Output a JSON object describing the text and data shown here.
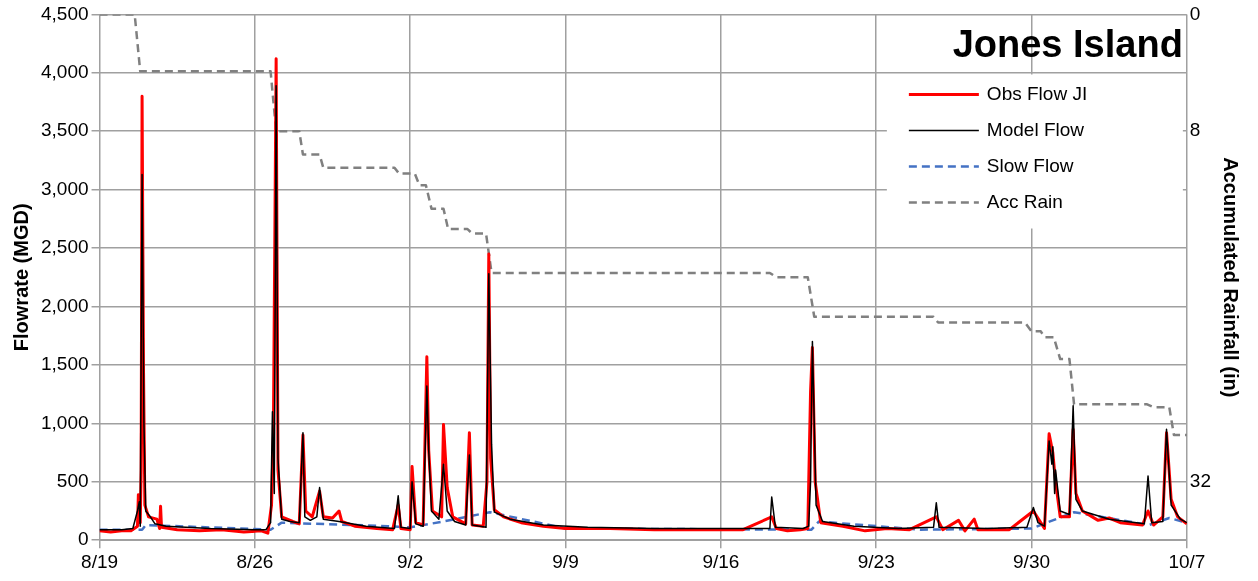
{
  "chart_data": {
    "type": "line",
    "title": "Jones Island",
    "ylabel": "Flowrate (MGD)",
    "y2label": "Accumulated Rainfall (in)",
    "xlim": [
      "--08-19",
      "--10-07"
    ],
    "xticks": [
      {
        "value": "--08-19",
        "label": "8/19"
      },
      {
        "value": "--08-26",
        "label": "8/26"
      },
      {
        "value": "--09-02",
        "label": "9/2"
      },
      {
        "value": "--09-09",
        "label": "9/9"
      },
      {
        "value": "--09-16",
        "label": "9/16"
      },
      {
        "value": "--09-23",
        "label": "9/23"
      },
      {
        "value": "--09-30",
        "label": "9/30"
      },
      {
        "value": "--10-07",
        "label": "10/7"
      }
    ],
    "ylim": [
      0,
      4500
    ],
    "yticks": [
      {
        "value": 0,
        "label": "0"
      },
      {
        "value": 500,
        "label": "500"
      },
      {
        "value": 1000,
        "label": "1,000"
      },
      {
        "value": 1500,
        "label": "1,500"
      },
      {
        "value": 2000,
        "label": "2,000"
      },
      {
        "value": 2500,
        "label": "2,500"
      },
      {
        "value": 3000,
        "label": "3,000"
      },
      {
        "value": 3500,
        "label": "3,500"
      },
      {
        "value": 4000,
        "label": "4,000"
      },
      {
        "value": 4500,
        "label": "4,500"
      }
    ],
    "y2lim": [
      36,
      0
    ],
    "y2ticks": [
      0,
      8,
      32
    ],
    "grid": true,
    "legend": "top right",
    "marker": "none",
    "series": [
      {
        "name": "Obs Flow JI",
        "color": "#ff0000",
        "line_style": "solid",
        "x": [
          "--08-19T00:00",
          "--08-19T12:00",
          "--08-20T00:00",
          "--08-20T10:00",
          "--08-20T17:00",
          "--08-20T18:00",
          "--08-20T20:00",
          "--08-20T21:00",
          "--08-20T22:00",
          "--08-20T23:30",
          "--08-21T01:00",
          "--08-21T05:00",
          "--08-21T14:00",
          "--08-21T17:00",
          "--08-21T18:00",
          "--08-21T19:00",
          "--08-22T12:00",
          "--08-23T12:00",
          "--08-24T12:00",
          "--08-25T12:00",
          "--08-26T07:00",
          "--08-26T14:00",
          "--08-26T18:00",
          "--08-26T20:00",
          "--08-26T23:00",
          "--08-27T01:00",
          "--08-27T05:00",
          "--08-27T17:00",
          "--08-28T00:00",
          "--08-28T04:00",
          "--08-28T07:00",
          "--08-28T14:00",
          "--08-28T22:00",
          "--08-29T02:00",
          "--08-29T12:00",
          "--08-29T19:00",
          "--08-29T22:00",
          "--08-30T12:00",
          "--08-31T12:00",
          "--09-01T05:00",
          "--09-01T11:00",
          "--09-01T14:00",
          "--09-02T00:00",
          "--09-02T02:00",
          "--09-02T06:00",
          "--09-02T14:00",
          "--09-02T18:00",
          "--09-02T20:00",
          "--09-03T00:00",
          "--09-03T10:00",
          "--09-03T12:00",
          "--09-03T16:00",
          "--09-03T22:00",
          "--09-04T12:00",
          "--09-04T16:00",
          "--09-04T19:00",
          "--09-05T07:00",
          "--09-05T11:00",
          "--09-05T13:00",
          "--09-05T15:00",
          "--09-05T19:00",
          "--09-06T05:00",
          "--09-07T00:00",
          "--09-08T00:00",
          "--09-09T00:00",
          "--09-11T00:00",
          "--09-13T00:00",
          "--09-15T00:00",
          "--09-17T00:00",
          "--09-18T07:00",
          "--09-18T12:00",
          "--09-19T00:00",
          "--09-19T14:00",
          "--09-19T22:00",
          "--09-20T01:00",
          "--09-20T03:00",
          "--09-20T06:00",
          "--09-20T12:00",
          "--09-21T12:00",
          "--09-22T12:00",
          "--09-23T12:00",
          "--09-24T12:00",
          "--09-25T17:00",
          "--09-26T00:00",
          "--09-26T17:00",
          "--09-27T00:00",
          "--09-27T10:00",
          "--09-27T14:00",
          "--09-29T00:00",
          "--09-30T02:00",
          "--09-30T10:00",
          "--09-30T14:00",
          "--09-30T19:00",
          "--09-30T23:00",
          "--10-01T02:00",
          "--10-01T07:00",
          "--10-01T17:00",
          "--10-01T21:00",
          "--10-02T00:00",
          "--10-02T07:00",
          "--10-03T00:00",
          "--10-03T12:00",
          "--10-04T00:00",
          "--10-05T00:00",
          "--10-05T06:00",
          "--10-05T12:00",
          "--10-05T22:00",
          "--10-06T02:00",
          "--10-06T07:00",
          "--10-06T14:00",
          "--10-07T00:00"
        ],
        "values": [
          80,
          70,
          80,
          80,
          120,
          390,
          150,
          600,
          3800,
          1500,
          300,
          200,
          180,
          100,
          290,
          110,
          90,
          80,
          90,
          70,
          80,
          60,
          300,
          900,
          4120,
          600,
          200,
          160,
          140,
          900,
          250,
          200,
          420,
          200,
          190,
          250,
          160,
          120,
          100,
          90,
          300,
          100,
          90,
          630,
          150,
          130,
          1570,
          770,
          250,
          200,
          990,
          450,
          200,
          140,
          920,
          130,
          120,
          500,
          2450,
          700,
          260,
          200,
          150,
          120,
          100,
          100,
          90,
          90,
          90,
          200,
          100,
          80,
          90,
          100,
          1270,
          1650,
          500,
          150,
          120,
          80,
          100,
          90,
          200,
          90,
          170,
          80,
          180,
          90,
          90,
          250,
          150,
          100,
          910,
          750,
          500,
          200,
          200,
          950,
          400,
          250,
          170,
          190,
          150,
          130,
          250,
          130,
          200,
          920,
          350,
          200,
          140
        ]
      },
      {
        "name": "Model Flow",
        "color": "#000000",
        "line_style": "solid",
        "x": [
          "--08-19T00:00",
          "--08-20T00:00",
          "--08-20T12:00",
          "--08-20T17:00",
          "--08-20T19:00",
          "--08-20T20:00",
          "--08-20T22:00",
          "--08-21T00:00",
          "--08-21T02:00",
          "--08-21T07:00",
          "--08-21T12:00",
          "--08-22T00:00",
          "--08-24T00:00",
          "--08-26T00:00",
          "--08-26T12:00",
          "--08-26T17:00",
          "--08-26T19:00",
          "--08-26T21:00",
          "--08-26T23:00",
          "--08-27T01:00",
          "--08-27T05:00",
          "--08-27T14:00",
          "--08-28T00:00",
          "--08-28T04:00",
          "--08-28T06:00",
          "--08-28T12:00",
          "--08-28T19:00",
          "--08-28T22:00",
          "--08-29T02:00",
          "--08-29T19:00",
          "--08-31T00:00",
          "--09-01T07:00",
          "--09-01T11:00",
          "--09-01T14:00",
          "--09-02T00:00",
          "--09-02T02:00",
          "--09-02T06:00",
          "--09-02T14:00",
          "--09-02T18:00",
          "--09-02T20:00",
          "--09-02T23:00",
          "--09-03T07:00",
          "--09-03T12:00",
          "--09-03T16:00",
          "--09-04T00:00",
          "--09-04T12:00",
          "--09-04T16:00",
          "--09-04T19:00",
          "--09-05T10:00",
          "--09-05T13:00",
          "--09-05T16:00",
          "--09-05T19:00",
          "--09-06T12:00",
          "--09-08T00:00",
          "--09-10T00:00",
          "--09-13T00:00",
          "--09-16T00:00",
          "--09-18T05:00",
          "--09-18T07:00",
          "--09-18T11:00",
          "--09-19T17:00",
          "--09-19T23:00",
          "--09-20T01:00",
          "--09-20T03:00",
          "--09-20T07:00",
          "--09-20T14:00",
          "--09-22T00:00",
          "--09-24T00:00",
          "--09-25T14:00",
          "--09-25T17:00",
          "--09-25T20:00",
          "--09-28T00:00",
          "--09-29T19:00",
          "--09-30T02:00",
          "--09-30T07:00",
          "--09-30T14:00",
          "--09-30T19:00",
          "--09-30T22:00",
          "--09-30T23:00",
          "--10-01T01:00",
          "--10-01T02:00",
          "--10-01T07:00",
          "--10-01T17:00",
          "--10-01T21:00",
          "--10-02T00:00",
          "--10-02T07:00",
          "--10-03T12:00",
          "--10-05T02:00",
          "--10-05T06:00",
          "--10-05T10:00",
          "--10-05T22:00",
          "--10-06T02:00",
          "--10-06T07:00",
          "--10-06T17:00",
          "--10-07T00:00"
        ],
        "values": [
          90,
          90,
          100,
          250,
          330,
          120,
          3130,
          1000,
          250,
          200,
          140,
          120,
          100,
          90,
          90,
          150,
          1100,
          400,
          3890,
          700,
          180,
          160,
          150,
          920,
          200,
          170,
          200,
          450,
          180,
          160,
          120,
          100,
          380,
          110,
          100,
          500,
          140,
          120,
          1320,
          770,
          250,
          180,
          650,
          250,
          160,
          130,
          730,
          130,
          110,
          2280,
          820,
          240,
          180,
          130,
          110,
          100,
          100,
          100,
          370,
          110,
          100,
          120,
          500,
          1700,
          300,
          160,
          120,
          100,
          110,
          320,
          110,
          100,
          110,
          280,
          150,
          120,
          850,
          650,
          800,
          400,
          600,
          250,
          220,
          1150,
          350,
          250,
          180,
          140,
          550,
          150,
          160,
          950,
          300,
          180,
          150
        ]
      },
      {
        "name": "Slow Flow",
        "color": "#4472c4",
        "line_style": "dashed",
        "x": [
          "--08-19T00:00",
          "--08-20T22:00",
          "--08-21T02:00",
          "--08-26T17:00",
          "--08-27T05:00",
          "--09-01T00:00",
          "--09-02T00:00",
          "--09-03T12:00",
          "--09-05T14:00",
          "--09-09T00:00",
          "--09-20T02:00",
          "--09-20T10:00",
          "--09-25T00:00",
          "--09-30T00:00",
          "--10-01T22:00",
          "--10-05T07:00",
          "--10-06T05:00",
          "--10-07T00:00"
        ],
        "values": [
          90,
          90,
          130,
          90,
          150,
          120,
          110,
          160,
          240,
          100,
          90,
          160,
          90,
          100,
          240,
          130,
          190,
          150
        ]
      },
      {
        "name": "Acc Rain",
        "color": "#808080",
        "line_style": "dashed",
        "axis": "y2",
        "x": [
          "--08-19T00:00",
          "--08-20T14:00",
          "--08-20T20:00",
          "--08-26T17:00",
          "--08-26T23:00",
          "--08-28T00:00",
          "--08-28T04:00",
          "--08-28T22:00",
          "--08-29T02:00",
          "--09-01T07:00",
          "--09-01T12:00",
          "--09-02T05:00",
          "--09-02T10:00",
          "--09-02T17:00",
          "--09-02T23:00",
          "--09-03T12:00",
          "--09-03T17:00",
          "--09-04T14:00",
          "--09-04T19:00",
          "--09-05T10:00",
          "--09-05T16:00",
          "--09-18T05:00",
          "--09-18T12:00",
          "--09-19T22:00",
          "--09-20T05:00",
          "--09-25T14:00",
          "--09-25T19:00",
          "--09-29T17:00",
          "--09-30T00:00",
          "--09-30T10:00",
          "--09-30T14:00",
          "--10-01T00:00",
          "--10-01T07:00",
          "--10-01T17:00",
          "--10-01T22:00",
          "--10-05T05:00",
          "--10-05T12:00",
          "--10-06T05:00",
          "--10-06T10:00",
          "--10-07T00:00"
        ],
        "values": [
          0,
          0,
          3.9,
          3.9,
          8.0,
          8.0,
          9.6,
          9.6,
          10.5,
          10.5,
          10.9,
          10.9,
          11.7,
          11.7,
          13.3,
          13.3,
          14.7,
          14.7,
          15.0,
          15.0,
          17.7,
          17.7,
          18.0,
          18.0,
          20.7,
          20.7,
          21.1,
          21.1,
          21.7,
          21.7,
          22.1,
          22.1,
          23.6,
          23.6,
          26.7,
          26.7,
          26.9,
          26.9,
          28.8,
          28.8
        ]
      }
    ]
  }
}
